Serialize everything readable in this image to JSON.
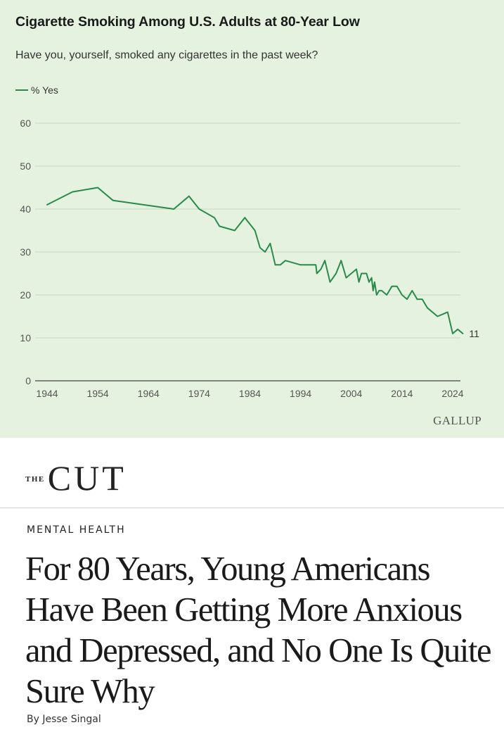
{
  "chart": {
    "title": "Cigarette Smoking Among U.S. Adults at 80-Year Low",
    "subtitle": "Have you, yourself, smoked any cigarettes in the past week?",
    "source": "GALLUP"
  },
  "chart_data": {
    "type": "line",
    "title": "Cigarette Smoking Among U.S. Adults at 80-Year Low",
    "subtitle": "Have you, yourself, smoked any cigarettes in the past week?",
    "xlabel": "",
    "ylabel": "",
    "xlim": [
      1944,
      2024
    ],
    "ylim": [
      0,
      60
    ],
    "xticks": [
      1944,
      1954,
      1964,
      1974,
      1984,
      1994,
      2004,
      2014,
      2024
    ],
    "yticks": [
      0,
      10,
      20,
      30,
      40,
      50,
      60
    ],
    "grid": true,
    "legend": "top-left",
    "line_color": "#2a8a4c",
    "end_label": "11",
    "series": [
      {
        "name": "% Yes",
        "points": [
          [
            1944,
            41
          ],
          [
            1949,
            44
          ],
          [
            1954,
            45
          ],
          [
            1957,
            42
          ],
          [
            1969,
            40
          ],
          [
            1972,
            43
          ],
          [
            1974,
            40
          ],
          [
            1977,
            38
          ],
          [
            1978,
            36
          ],
          [
            1981,
            35
          ],
          [
            1983,
            38
          ],
          [
            1985,
            35
          ],
          [
            1986,
            31
          ],
          [
            1987,
            30
          ],
          [
            1988,
            32
          ],
          [
            1989,
            27
          ],
          [
            1990,
            27
          ],
          [
            1991,
            28
          ],
          [
            1994,
            27
          ],
          [
            1997,
            27
          ],
          [
            1997.2,
            25
          ],
          [
            1998,
            26
          ],
          [
            1998.8,
            28
          ],
          [
            1999.8,
            23
          ],
          [
            2001,
            25
          ],
          [
            2002,
            28
          ],
          [
            2003,
            24
          ],
          [
            2004,
            25
          ],
          [
            2005,
            26
          ],
          [
            2005.5,
            23
          ],
          [
            2006,
            25
          ],
          [
            2007,
            25
          ],
          [
            2007.5,
            23
          ],
          [
            2008,
            24
          ],
          [
            2008.3,
            21
          ],
          [
            2008.6,
            23
          ],
          [
            2009,
            20
          ],
          [
            2009.5,
            21
          ],
          [
            2010,
            21
          ],
          [
            2011,
            20
          ],
          [
            2012,
            22
          ],
          [
            2013,
            22
          ],
          [
            2014,
            20
          ],
          [
            2015,
            19
          ],
          [
            2016,
            21
          ],
          [
            2017,
            19
          ],
          [
            2018,
            19
          ],
          [
            2019,
            17
          ],
          [
            2021,
            15
          ],
          [
            2023,
            16
          ],
          [
            2024,
            11
          ],
          [
            2025,
            12
          ],
          [
            2026,
            11
          ]
        ]
      }
    ]
  },
  "article": {
    "logo_the": "THE",
    "logo_name": "CUT",
    "section": "MENTAL HEALTH",
    "headline": "For 80 Years, Young Americans Have Been Getting More Anxious and Depressed, and No One Is Quite Sure Why",
    "byline": "By Jesse Singal"
  }
}
